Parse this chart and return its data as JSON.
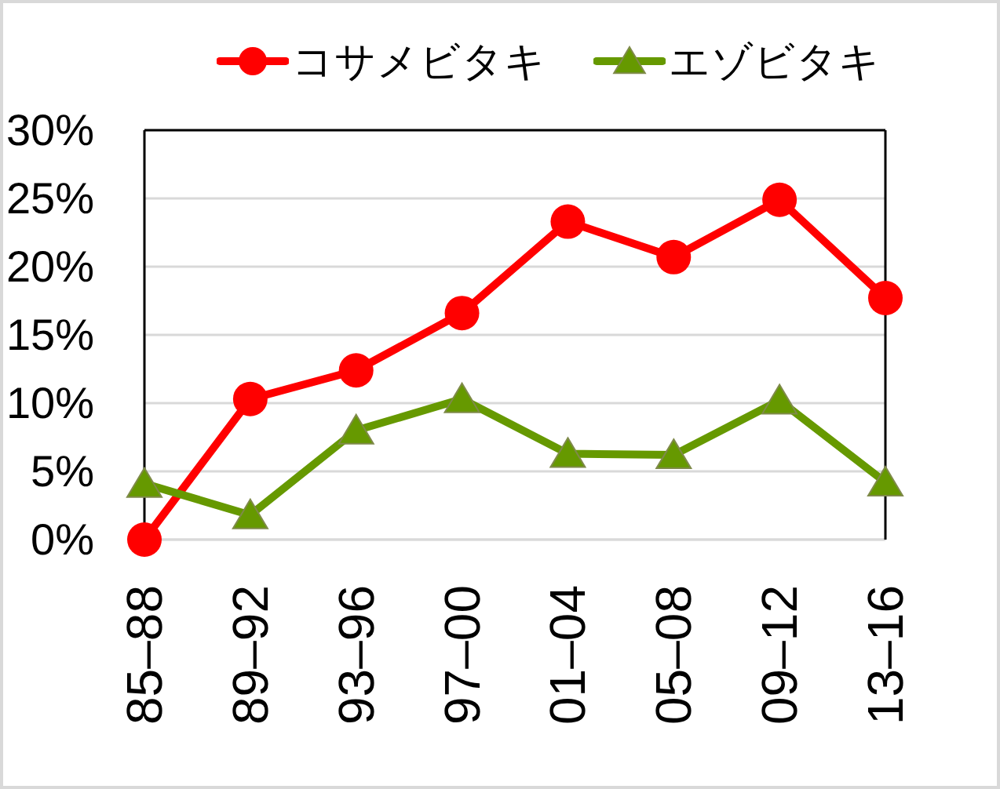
{
  "chart_data": {
    "type": "line",
    "categories": [
      "85–88",
      "89–92",
      "93–96",
      "97–00",
      "01–04",
      "05–08",
      "09–12",
      "13–16"
    ],
    "series": [
      {
        "name": "コサメビタキ",
        "color": "#ff0000",
        "marker": "circle",
        "values": [
          0,
          10.3,
          12.4,
          16.6,
          23.3,
          20.7,
          24.9,
          17.7
        ]
      },
      {
        "name": "エゾビタキ",
        "color": "#669900",
        "marker": "triangle",
        "values": [
          4.1,
          1.8,
          8.0,
          10.3,
          6.3,
          6.2,
          10.2,
          4.2
        ]
      }
    ],
    "ylim": [
      0,
      30
    ],
    "yticks": [
      {
        "value": 0,
        "label": "0%"
      },
      {
        "value": 5,
        "label": "5%"
      },
      {
        "value": 10,
        "label": "10%"
      },
      {
        "value": 15,
        "label": "15%"
      },
      {
        "value": 20,
        "label": "20%"
      },
      {
        "value": 25,
        "label": "25%"
      },
      {
        "value": 30,
        "label": "30%"
      }
    ],
    "grid": "y",
    "legend": "top",
    "line_style": "solid"
  }
}
